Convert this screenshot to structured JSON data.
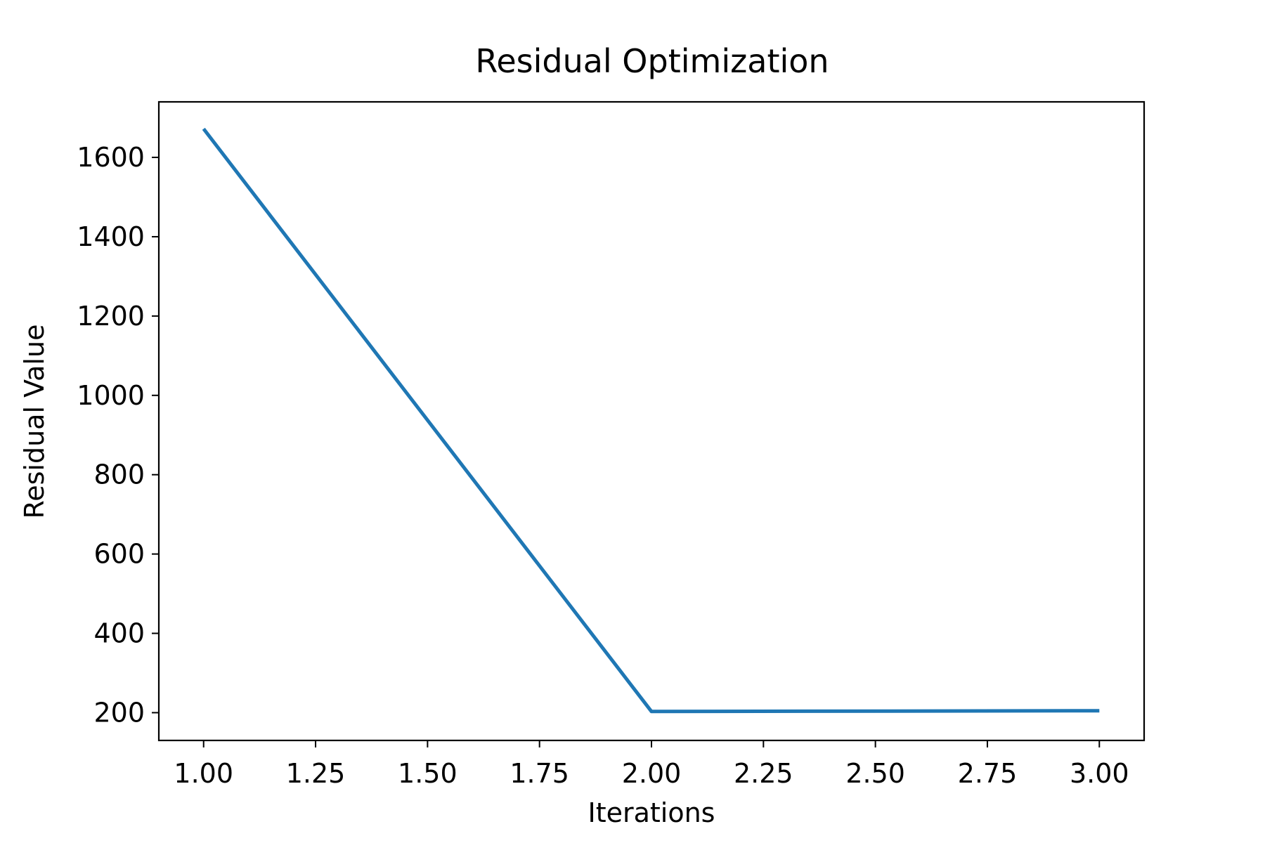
{
  "chart_data": {
    "type": "line",
    "title": "Residual Optimization",
    "xlabel": "Iterations",
    "ylabel": "Residual Value",
    "xlim": [
      0.9,
      3.1
    ],
    "ylim": [
      130,
      1740
    ],
    "xticks": [
      1.0,
      1.25,
      1.5,
      1.75,
      2.0,
      2.25,
      2.5,
      2.75,
      3.0
    ],
    "xtick_labels": [
      "1.00",
      "1.25",
      "1.50",
      "1.75",
      "2.00",
      "2.25",
      "2.50",
      "2.75",
      "3.00"
    ],
    "yticks": [
      200,
      400,
      600,
      800,
      1000,
      1200,
      1400,
      1600
    ],
    "ytick_labels": [
      "200",
      "400",
      "600",
      "800",
      "1000",
      "1200",
      "1400",
      "1600"
    ],
    "grid": false,
    "series": [
      {
        "color": "#1f77b4",
        "x": [
          1,
          2,
          3
        ],
        "y": [
          1672,
          203,
          205
        ]
      }
    ]
  }
}
